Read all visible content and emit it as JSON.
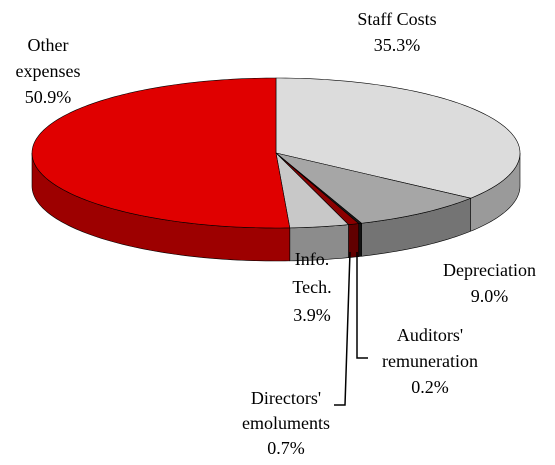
{
  "chart_data": {
    "type": "pie3d",
    "categories": [
      "Staff Costs",
      "Depreciation",
      "Auditors' remuneration",
      "Directors' emoluments",
      "Info. Tech.",
      "Other expenses"
    ],
    "values": [
      35.3,
      9.0,
      0.2,
      0.7,
      3.9,
      50.9
    ],
    "value_labels": [
      "35.3%",
      "9.0%",
      "0.2%",
      "0.7%",
      "3.9%",
      "50.9%"
    ],
    "colors": [
      "#dcdcdc",
      "#a6a6a6",
      "#1a1a1a",
      "#8b0000",
      "#c8c8c8",
      "#e00000"
    ]
  }
}
